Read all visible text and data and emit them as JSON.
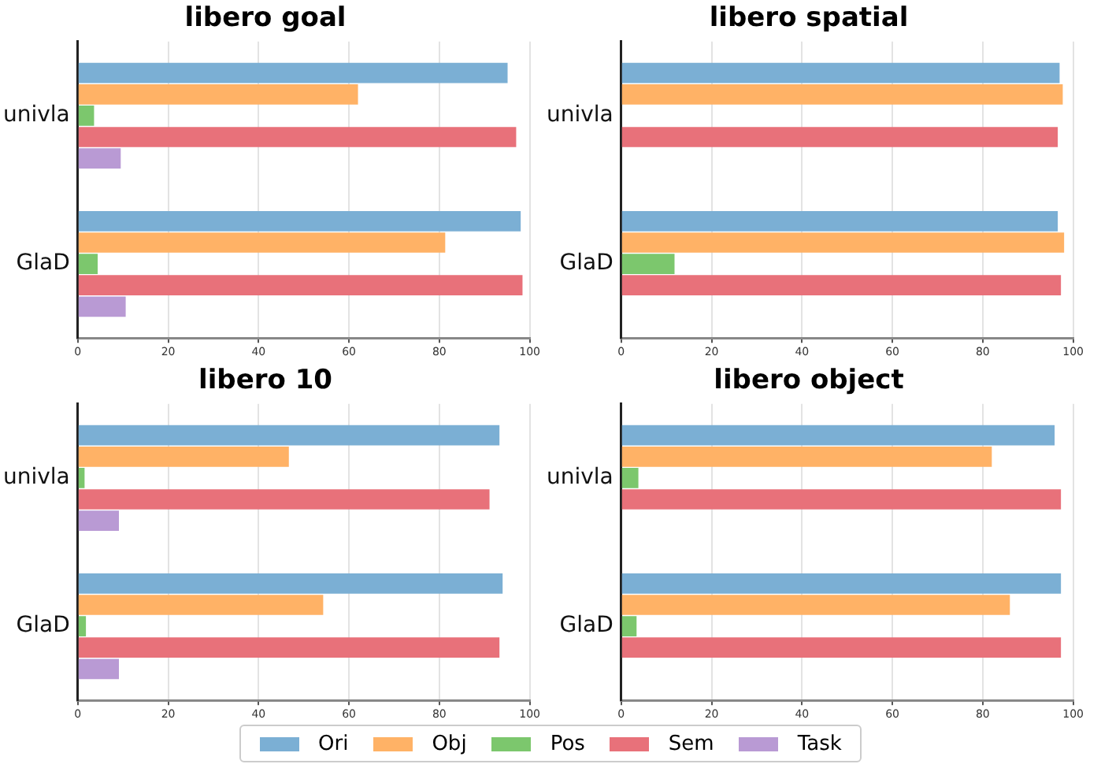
{
  "chart_data": [
    {
      "type": "bar",
      "orientation": "horizontal",
      "title": "libero goal",
      "categories": [
        "univla",
        "GlaD"
      ],
      "xlim": [
        0,
        100
      ],
      "xticks": [
        0,
        20,
        40,
        60,
        80,
        100
      ],
      "grid": "x",
      "legend": "bottom",
      "series": [
        {
          "name": "Ori",
          "color": "#7bafd4",
          "values": [
            95.1,
            98
          ]
        },
        {
          "name": "Obj",
          "color": "#ffb266",
          "values": [
            62,
            81.3
          ]
        },
        {
          "name": "Pos",
          "color": "#7cc76d",
          "values": [
            3.6,
            4.4
          ]
        },
        {
          "name": "Sem",
          "color": "#e8717a",
          "values": [
            97,
            98.4
          ]
        },
        {
          "name": "Task",
          "color": "#b99ad4",
          "values": [
            9.5,
            10.6
          ]
        }
      ]
    },
    {
      "type": "bar",
      "orientation": "horizontal",
      "title": "libero spatial",
      "categories": [
        "univla",
        "GlaD"
      ],
      "xlim": [
        0,
        100
      ],
      "xticks": [
        0,
        20,
        40,
        60,
        80,
        100
      ],
      "grid": "x",
      "series": [
        {
          "color": "#7bafd4",
          "values": [
            97,
            96.6
          ]
        },
        {
          "color": "#ffb266",
          "values": [
            97.7,
            98
          ]
        },
        {
          "color": "#7cc76d",
          "values": [
            null,
            11.8
          ]
        },
        {
          "color": "#e8717a",
          "values": [
            96.6,
            97.3
          ]
        },
        {
          "color": "#b99ad4",
          "values": [
            null,
            null
          ]
        }
      ]
    },
    {
      "type": "bar",
      "orientation": "horizontal",
      "title": "libero 10",
      "categories": [
        "univla",
        "GlaD"
      ],
      "xlim": [
        0,
        100
      ],
      "xticks": [
        0,
        20,
        40,
        60,
        80,
        100
      ],
      "grid": "x",
      "series": [
        {
          "color": "#7bafd4",
          "values": [
            93.3,
            94
          ]
        },
        {
          "color": "#ffb266",
          "values": [
            46.7,
            54.3
          ]
        },
        {
          "color": "#7cc76d",
          "values": [
            1.5,
            1.8
          ]
        },
        {
          "color": "#e8717a",
          "values": [
            91.1,
            93.3
          ]
        },
        {
          "color": "#b99ad4",
          "values": [
            9.1,
            9.1
          ]
        }
      ]
    },
    {
      "type": "bar",
      "orientation": "horizontal",
      "title": "libero object",
      "categories": [
        "univla",
        "GlaD"
      ],
      "xlim": [
        0,
        100
      ],
      "xticks": [
        0,
        20,
        40,
        60,
        80,
        100
      ],
      "grid": "x",
      "series": [
        {
          "color": "#7bafd4",
          "values": [
            95.9,
            97.3
          ]
        },
        {
          "color": "#ffb266",
          "values": [
            82,
            86
          ]
        },
        {
          "color": "#7cc76d",
          "values": [
            3.8,
            3.4
          ]
        },
        {
          "color": "#e8717a",
          "values": [
            97.3,
            97.3
          ]
        },
        {
          "color": "#b99ad4",
          "values": [
            null,
            null
          ]
        }
      ]
    }
  ]
}
